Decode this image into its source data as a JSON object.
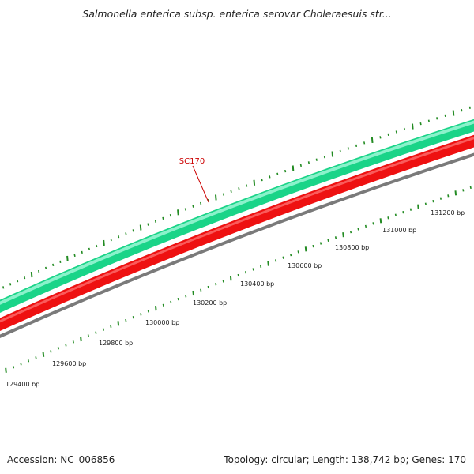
{
  "title": "Salmonella enterica subsp. enterica serovar Choleraesuis str...",
  "gene_label": "SC170",
  "accession": "Accession: NC_006856",
  "summary": "Topology: circular; Length: 138,742 bp; Genes: 170",
  "scale": {
    "unit": "bp",
    "labels": [
      "129400 bp",
      "129600 bp",
      "129800 bp",
      "130000 bp",
      "130200 bp",
      "130400 bp",
      "130600 bp",
      "130800 bp",
      "131000 bp",
      "131200 bp"
    ]
  },
  "colors": {
    "forward_strand": "#2de89a",
    "reverse_strand": "#ee1111",
    "backbone": "#808080",
    "ticks": "#228b22",
    "label": "#cc0000",
    "text": "#222222"
  }
}
